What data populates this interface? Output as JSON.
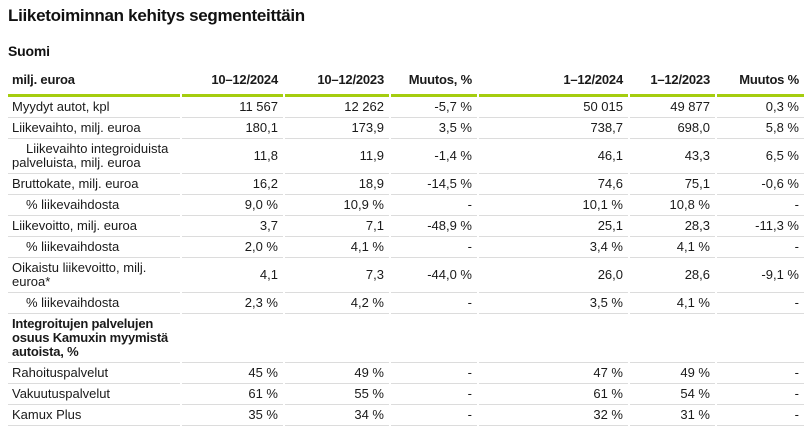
{
  "page": {
    "title": "Liiketoiminnan kehitys segmenteittäin",
    "subtitle": "Suomi"
  },
  "colors": {
    "accent_green": "#a5cd0f",
    "row_divider": "#dcdcdc",
    "text": "#1a1a1a"
  },
  "chart_data": {
    "type": "table",
    "title": "Liiketoiminnan kehitys segmenteittäin — Suomi",
    "columns": [
      "milj. euroa",
      "10–12/2024",
      "10–12/2023",
      "Muutos, %",
      "1–12/2024",
      "1–12/2023",
      "Muutos %"
    ],
    "rows": [
      {
        "label": "Myydyt autot, kpl",
        "indent": false,
        "bold": false,
        "values": [
          "11 567",
          "12 262",
          "-5,7 %",
          "50 015",
          "49 877",
          "0,3 %"
        ]
      },
      {
        "label": "Liikevaihto, milj. euroa",
        "indent": false,
        "bold": false,
        "values": [
          "180,1",
          "173,9",
          "3,5 %",
          "738,7",
          "698,0",
          "5,8 %"
        ]
      },
      {
        "label": "Liikevaihto integroiduista palveluista, milj. euroa",
        "indent": true,
        "bold": false,
        "values": [
          "11,8",
          "11,9",
          "-1,4 %",
          "46,1",
          "43,3",
          "6,5 %"
        ]
      },
      {
        "label": "Bruttokate, milj. euroa",
        "indent": false,
        "bold": false,
        "values": [
          "16,2",
          "18,9",
          "-14,5 %",
          "74,6",
          "75,1",
          "-0,6 %"
        ]
      },
      {
        "label": "% liikevaihdosta",
        "indent": true,
        "bold": false,
        "values": [
          "9,0 %",
          "10,9 %",
          "-",
          "10,1 %",
          "10,8 %",
          "-"
        ]
      },
      {
        "label": "Liikevoitto, milj. euroa",
        "indent": false,
        "bold": false,
        "values": [
          "3,7",
          "7,1",
          "-48,9 %",
          "25,1",
          "28,3",
          "-11,3 %"
        ]
      },
      {
        "label": "% liikevaihdosta",
        "indent": true,
        "bold": false,
        "values": [
          "2,0 %",
          "4,1 %",
          "-",
          "3,4 %",
          "4,1 %",
          "-"
        ]
      },
      {
        "label": "Oikaistu liikevoitto, milj. euroa*",
        "indent": false,
        "bold": false,
        "values": [
          "4,1",
          "7,3",
          "-44,0 %",
          "26,0",
          "28,6",
          "-9,1 %"
        ]
      },
      {
        "label": "% liikevaihdosta",
        "indent": true,
        "bold": false,
        "values": [
          "2,3 %",
          "4,2 %",
          "-",
          "3,5 %",
          "4,1 %",
          "-"
        ]
      },
      {
        "label": "Integroitujen palvelujen osuus Kamuxin myymistä autoista, %",
        "indent": false,
        "bold": true,
        "values": [
          "",
          "",
          "",
          "",
          "",
          ""
        ]
      },
      {
        "label": "Rahoituspalvelut",
        "indent": false,
        "bold": false,
        "values": [
          "45 %",
          "49 %",
          "-",
          "47 %",
          "49 %",
          "-"
        ]
      },
      {
        "label": "Vakuutuspalvelut",
        "indent": false,
        "bold": false,
        "values": [
          "61 %",
          "55 %",
          "-",
          "61 %",
          "54 %",
          "-"
        ]
      },
      {
        "label": "Kamux Plus",
        "indent": false,
        "bold": false,
        "values": [
          "35 %",
          "34 %",
          "-",
          "32 %",
          "31 %",
          "-"
        ]
      }
    ]
  }
}
